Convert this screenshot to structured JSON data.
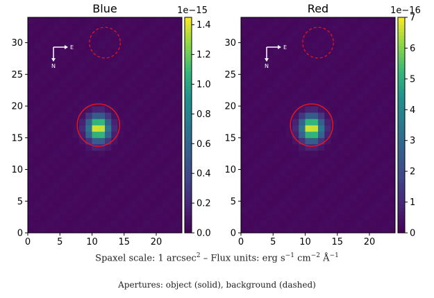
{
  "chart_data": [
    {
      "type": "heatmap",
      "title": "Blue",
      "grid_size": [
        24,
        34
      ],
      "xlim": [
        0,
        24
      ],
      "ylim": [
        0,
        34
      ],
      "xticks": [
        0,
        5,
        10,
        15,
        20
      ],
      "yticks": [
        0,
        5,
        10,
        15,
        20,
        25,
        30
      ],
      "colorbar": {
        "min": 0.0,
        "max": 1.45,
        "ticks": [
          "0.0",
          "0.2",
          "0.4",
          "0.6",
          "0.8",
          "1.0",
          "1.2",
          "1.4"
        ],
        "tick_values": [
          0.0,
          0.2,
          0.4,
          0.6,
          0.8,
          1.0,
          1.2,
          1.4
        ],
        "multiplier": "1e−15"
      },
      "source": {
        "x": 11,
        "y": 16.5,
        "peak": 1.45,
        "sigma_x": 1.2,
        "sigma_y": 1.4
      },
      "background_level": 0.03,
      "object_aperture": {
        "x": 11,
        "y": 17,
        "r": 3.3,
        "style": "solid"
      },
      "background_aperture": {
        "x": 12,
        "y": 30,
        "r": 2.4,
        "style": "dashed"
      },
      "compass": {
        "east": "E",
        "north": "N"
      }
    },
    {
      "type": "heatmap",
      "title": "Red",
      "grid_size": [
        24,
        34
      ],
      "xlim": [
        0,
        24
      ],
      "ylim": [
        0,
        34
      ],
      "xticks": [
        0,
        5,
        10,
        15,
        20
      ],
      "yticks": [
        0,
        5,
        10,
        15,
        20,
        25,
        30
      ],
      "colorbar": {
        "min": 0,
        "max": 7,
        "ticks": [
          "0",
          "1",
          "2",
          "3",
          "4",
          "5",
          "6",
          "7"
        ],
        "tick_values": [
          0,
          1,
          2,
          3,
          4,
          5,
          6,
          7
        ],
        "multiplier": "1e−16"
      },
      "source": {
        "x": 11,
        "y": 16.5,
        "peak": 7.0,
        "sigma_x": 1.2,
        "sigma_y": 1.4
      },
      "background_level": 0.15,
      "object_aperture": {
        "x": 11,
        "y": 17,
        "r": 3.3,
        "style": "solid"
      },
      "background_aperture": {
        "x": 12,
        "y": 30,
        "r": 2.4,
        "style": "dashed"
      },
      "compass": {
        "east": "E",
        "north": "N"
      }
    }
  ],
  "caption": {
    "scale_prefix": "Spaxel scale: 1 arcsec",
    "scale_exp": "2",
    "flux_prefix": " – Flux units: erg s",
    "exp1": "−1",
    "cm": " cm",
    "exp2": "−2",
    "angstrom": " Å",
    "exp3": "−1",
    "apertures": "Apertures: object (solid), background (dashed)"
  },
  "colors": {
    "aperture": "#e8141c",
    "low": "#440154",
    "high": "#fde725"
  }
}
